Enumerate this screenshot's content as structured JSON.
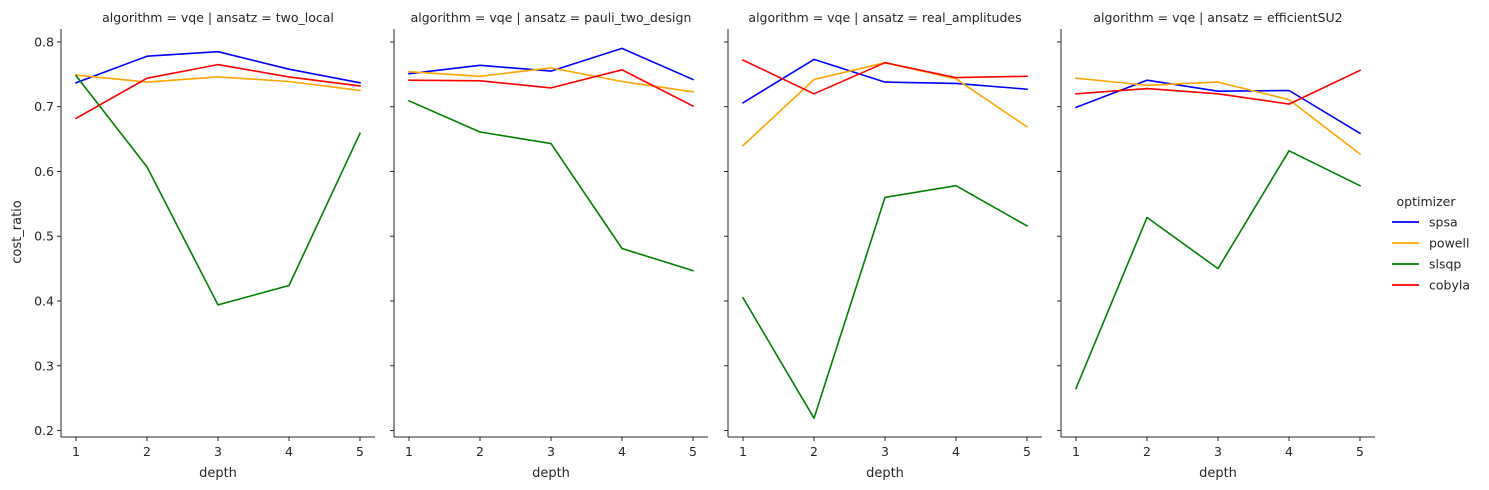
{
  "chart_data": {
    "type": "line",
    "x": [
      1,
      2,
      3,
      4,
      5
    ],
    "xlabel": "depth",
    "ylabel": "cost_ratio",
    "ylim": [
      0.19,
      0.82
    ],
    "yticks": [
      "0.2",
      "0.3",
      "0.4",
      "0.5",
      "0.6",
      "0.7",
      "0.8"
    ],
    "xticks": [
      "1",
      "2",
      "3",
      "4",
      "5"
    ],
    "grid": false,
    "legend": {
      "title": "optimizer",
      "placement": "right",
      "entries": [
        "spsa",
        "powell",
        "slsqp",
        "cobyla"
      ]
    },
    "colors": {
      "spsa": "#0000ff",
      "powell": "#ffa500",
      "slsqp": "#008000",
      "cobyla": "#ff0000"
    },
    "panels": [
      {
        "title": "algorithm = vqe | ansatz = two_local",
        "series": [
          {
            "name": "spsa",
            "values": [
              0.737,
              0.778,
              0.785,
              0.758,
              0.737
            ]
          },
          {
            "name": "powell",
            "values": [
              0.749,
              0.738,
              0.746,
              0.739,
              0.725
            ]
          },
          {
            "name": "slsqp",
            "values": [
              0.748,
              0.607,
              0.394,
              0.424,
              0.659
            ]
          },
          {
            "name": "cobyla",
            "values": [
              0.682,
              0.744,
              0.765,
              0.746,
              0.732
            ]
          }
        ]
      },
      {
        "title": "algorithm = vqe | ansatz = pauli_two_design",
        "series": [
          {
            "name": "spsa",
            "values": [
              0.751,
              0.764,
              0.755,
              0.79,
              0.742
            ]
          },
          {
            "name": "powell",
            "values": [
              0.754,
              0.747,
              0.76,
              0.739,
              0.723
            ]
          },
          {
            "name": "slsqp",
            "values": [
              0.709,
              0.661,
              0.643,
              0.481,
              0.447
            ]
          },
          {
            "name": "cobyla",
            "values": [
              0.741,
              0.74,
              0.729,
              0.757,
              0.701
            ]
          }
        ]
      },
      {
        "title": "algorithm = vqe | ansatz = real_amplitudes",
        "series": [
          {
            "name": "spsa",
            "values": [
              0.706,
              0.773,
              0.738,
              0.736,
              0.727
            ]
          },
          {
            "name": "powell",
            "values": [
              0.64,
              0.742,
              0.768,
              0.743,
              0.669
            ]
          },
          {
            "name": "slsqp",
            "values": [
              0.405,
              0.219,
              0.56,
              0.578,
              0.516
            ]
          },
          {
            "name": "cobyla",
            "values": [
              0.772,
              0.72,
              0.768,
              0.745,
              0.747
            ]
          }
        ]
      },
      {
        "title": "algorithm = vqe | ansatz = efficientSU2",
        "series": [
          {
            "name": "spsa",
            "values": [
              0.699,
              0.741,
              0.724,
              0.725,
              0.659
            ]
          },
          {
            "name": "powell",
            "values": [
              0.744,
              0.733,
              0.738,
              0.711,
              0.627
            ]
          },
          {
            "name": "slsqp",
            "values": [
              0.265,
              0.529,
              0.45,
              0.632,
              0.578
            ]
          },
          {
            "name": "cobyla",
            "values": [
              0.72,
              0.728,
              0.72,
              0.704,
              0.756
            ]
          }
        ]
      }
    ]
  }
}
